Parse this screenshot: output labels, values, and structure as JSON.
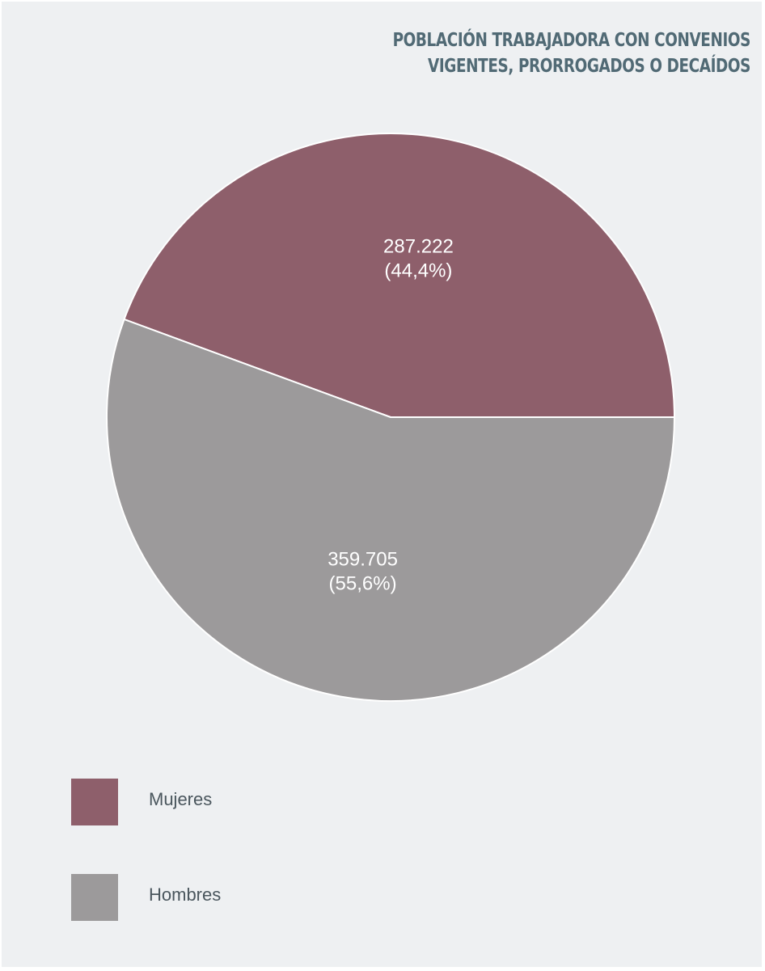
{
  "chart_data": {
    "type": "pie",
    "title_lines": [
      "POBLACIÓN TRABAJADORA CON CONVENIOS",
      "VIGENTES, PRORROGADOS O DECAÍDOS"
    ],
    "slices": [
      {
        "name": "Mujeres",
        "value": 287222,
        "value_label": "287.222",
        "percent_label": "(44,4%)",
        "color": "#8e5f6b"
      },
      {
        "name": "Hombres",
        "value": 359705,
        "value_label": "359.705",
        "percent_label": "(55,6%)",
        "color": "#9c9a9b"
      }
    ],
    "legend": {
      "placement": "bottom-left",
      "entries": [
        "Mujeres",
        "Hombres"
      ]
    }
  },
  "colors": {
    "title": "#516a75",
    "background": "#eef0f2",
    "slice_label": "#ffffff",
    "legend_text": "#4a565d",
    "separator": "#ffffff"
  }
}
